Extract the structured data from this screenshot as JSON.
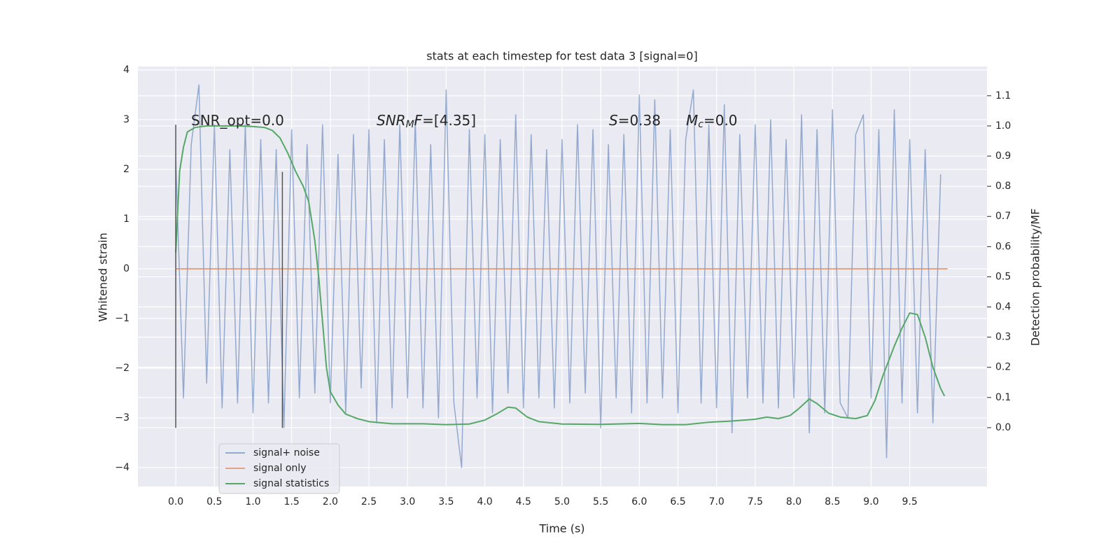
{
  "chart_data": {
    "type": "line",
    "title": "stats at each timestep for test data 3 [signal=0]",
    "xlabel": "Time (s)",
    "ylabel": "Whitened strain",
    "y2label": "Detection probability/MF",
    "xlim": [
      -0.49,
      10.5
    ],
    "ylim": [
      -4.38,
      4.07
    ],
    "y2lim": [
      -0.195,
      1.197
    ],
    "xticks": [
      {
        "value": 0,
        "label": "0.0"
      },
      0.5,
      {
        "value": 1,
        "label": "1.0"
      },
      1.5,
      {
        "value": 2,
        "label": "2.0"
      },
      2.5,
      {
        "value": 3,
        "label": "3.0"
      },
      3.5,
      {
        "value": 4,
        "label": "4.0"
      },
      4.5,
      {
        "value": 5,
        "label": "5.0"
      },
      5.5,
      {
        "value": 6,
        "label": "6.0"
      },
      6.5,
      {
        "value": 7,
        "label": "7.0"
      },
      7.5,
      {
        "value": 8,
        "label": "8.0"
      },
      8.5,
      {
        "value": 9,
        "label": "9.0"
      },
      9.5
    ],
    "yticks": [
      {
        "value": -4,
        "label": "−4"
      },
      {
        "value": -3,
        "label": "−3"
      },
      {
        "value": -2,
        "label": "−2"
      },
      {
        "value": -1,
        "label": "−1"
      },
      0,
      1,
      2,
      3,
      4
    ],
    "y2ticks": [
      {
        "value": 0,
        "label": "0.0"
      },
      0.1,
      0.2,
      0.3,
      0.4,
      0.5,
      0.6,
      0.7,
      0.8,
      0.9,
      {
        "value": 1,
        "label": "1.0"
      },
      1.1
    ],
    "grid": true,
    "legend": "lower left",
    "series": [
      {
        "name": "signal+ noise",
        "color": "#4c72b0",
        "x": [
          0.0,
          0.1,
          0.2,
          0.3,
          0.4,
          0.5,
          0.6,
          0.7,
          0.8,
          0.9,
          1.0,
          1.1,
          1.2,
          1.3,
          1.4,
          1.5,
          1.6,
          1.7,
          1.8,
          1.9,
          2.0,
          2.1,
          2.2,
          2.3,
          2.4,
          2.5,
          2.6,
          2.7,
          2.8,
          2.9,
          3.0,
          3.1,
          3.2,
          3.3,
          3.4,
          3.5,
          3.6,
          3.7,
          3.8,
          3.9,
          4.0,
          4.1,
          4.2,
          4.3,
          4.4,
          4.5,
          4.6,
          4.7,
          4.8,
          4.9,
          5.0,
          5.1,
          5.2,
          5.3,
          5.4,
          5.5,
          5.6,
          5.7,
          5.8,
          5.9,
          6.0,
          6.1,
          6.2,
          6.3,
          6.4,
          6.5,
          6.6,
          6.7,
          6.8,
          6.9,
          7.0,
          7.1,
          7.2,
          7.3,
          7.4,
          7.5,
          7.6,
          7.7,
          7.8,
          7.9,
          8.0,
          8.1,
          8.2,
          8.3,
          8.4,
          8.5,
          8.6,
          8.7,
          8.8,
          8.9,
          9.0,
          9.1,
          9.2,
          9.3,
          9.4,
          9.5,
          9.6,
          9.7,
          9.8,
          9.9
        ],
        "values": [
          2.2,
          -2.6,
          2.5,
          3.7,
          -2.3,
          2.9,
          -2.8,
          2.4,
          -2.7,
          2.9,
          -2.9,
          2.6,
          -2.7,
          2.4,
          -3.2,
          2.8,
          -2.6,
          2.5,
          -2.5,
          2.9,
          -2.7,
          2.3,
          -2.9,
          2.7,
          -2.4,
          2.8,
          -3.1,
          2.6,
          -2.8,
          2.9,
          -2.6,
          3.0,
          -2.8,
          2.5,
          -3.0,
          3.6,
          -2.7,
          -4.0,
          2.8,
          -2.6,
          2.7,
          -2.9,
          2.6,
          -2.5,
          3.1,
          -2.8,
          2.7,
          -2.6,
          2.4,
          -2.8,
          2.6,
          -2.7,
          2.9,
          -2.5,
          2.8,
          -3.2,
          2.5,
          -2.6,
          2.7,
          -2.9,
          3.5,
          -2.7,
          3.4,
          -2.6,
          2.8,
          -2.9,
          2.6,
          3.6,
          -2.7,
          2.9,
          -2.8,
          3.3,
          -3.3,
          2.7,
          -2.6,
          2.9,
          -2.7,
          3.0,
          -2.8,
          2.6,
          -2.6,
          3.1,
          -3.3,
          2.8,
          -2.9,
          3.2,
          -2.7,
          -3.0,
          2.7,
          3.1,
          -2.6,
          2.8,
          -3.8,
          3.2,
          -2.7,
          2.6,
          -2.9,
          2.4,
          -3.1,
          1.9
        ]
      },
      {
        "name": "signal only",
        "color": "#dd8452",
        "x": [
          0.0,
          9.99
        ],
        "values": [
          0,
          0
        ]
      },
      {
        "name": "signal statistics",
        "color": "#55a868",
        "axis": "y2",
        "x": [
          0.0,
          0.05,
          0.1,
          0.15,
          0.25,
          0.4,
          0.6,
          0.8,
          1.0,
          1.15,
          1.25,
          1.35,
          1.45,
          1.55,
          1.65,
          1.72,
          1.8,
          1.85,
          1.9,
          1.95,
          2.0,
          2.1,
          2.2,
          2.35,
          2.5,
          2.8,
          3.2,
          3.5,
          3.8,
          4.0,
          4.15,
          4.3,
          4.4,
          4.55,
          4.7,
          5.0,
          5.5,
          6.0,
          6.3,
          6.6,
          6.9,
          7.2,
          7.5,
          7.65,
          7.8,
          7.95,
          8.05,
          8.2,
          8.3,
          8.45,
          8.6,
          8.8,
          8.95,
          9.05,
          9.15,
          9.3,
          9.4,
          9.5,
          9.6,
          9.7,
          9.8,
          9.9,
          9.95
        ],
        "values": [
          0.58,
          0.85,
          0.93,
          0.98,
          0.995,
          1.0,
          1.0,
          1.0,
          0.998,
          0.995,
          0.985,
          0.96,
          0.91,
          0.85,
          0.8,
          0.75,
          0.62,
          0.5,
          0.35,
          0.2,
          0.12,
          0.075,
          0.045,
          0.03,
          0.02,
          0.013,
          0.013,
          0.01,
          0.012,
          0.025,
          0.045,
          0.068,
          0.065,
          0.035,
          0.02,
          0.012,
          0.011,
          0.014,
          0.01,
          0.01,
          0.018,
          0.022,
          0.028,
          0.035,
          0.03,
          0.04,
          0.06,
          0.095,
          0.08,
          0.048,
          0.035,
          0.03,
          0.04,
          0.09,
          0.17,
          0.27,
          0.33,
          0.38,
          0.375,
          0.3,
          0.2,
          0.13,
          0.105
        ]
      }
    ],
    "vlines": [
      {
        "x": 0,
        "ymin": -3.2,
        "ymax": 2.9,
        "color": "#555555"
      },
      {
        "x": 1.38,
        "ymin": -3.2,
        "ymax": 1.95,
        "color": "#555555"
      }
    ],
    "annotations": [
      {
        "parts": [
          {
            "text": "SNR_opt=0.0"
          }
        ]
      },
      {
        "parts": [
          {
            "text": "SNR",
            "style": "italic"
          },
          {
            "text": "M",
            "style": "sub"
          },
          {
            "text": "F",
            "style": "italic"
          },
          {
            "text": "=[4.35]"
          }
        ]
      },
      {
        "parts": [
          {
            "text": "S",
            "style": "italic"
          },
          {
            "text": "=0.38"
          }
        ]
      },
      {
        "parts": [
          {
            "text": "M",
            "style": "italic"
          },
          {
            "text": "c",
            "style": "sub"
          },
          {
            "text": "=0.0"
          }
        ]
      }
    ]
  }
}
